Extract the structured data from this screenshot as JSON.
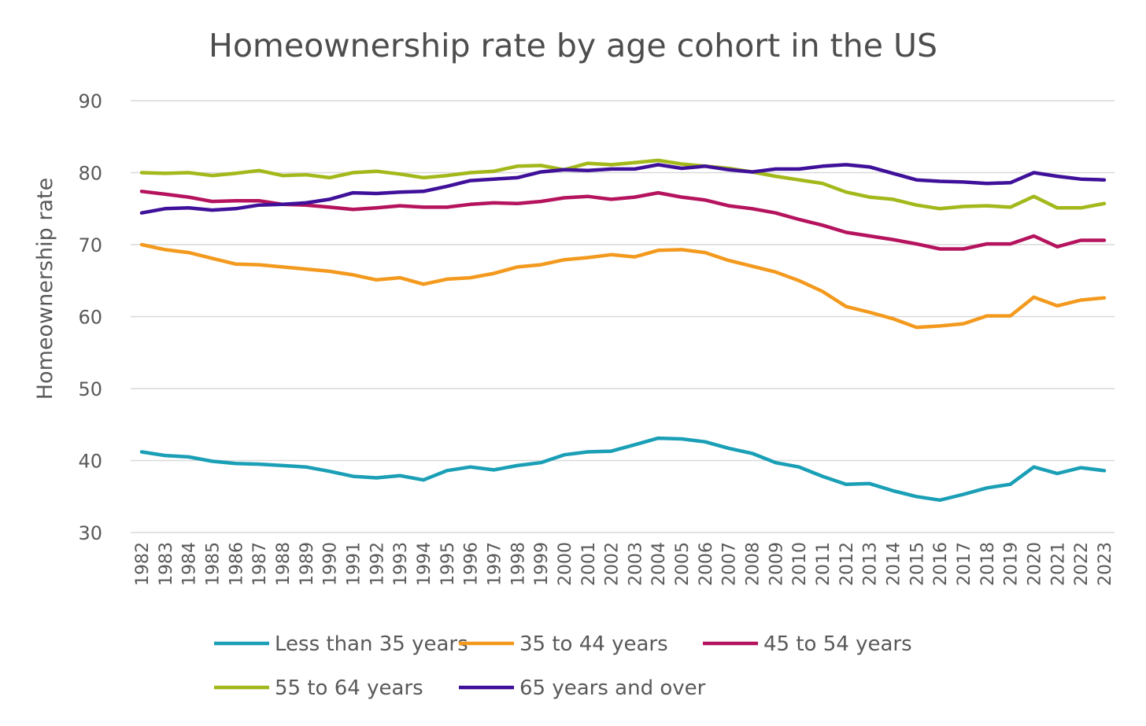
{
  "chart_data": {
    "type": "line",
    "title": "Homeownership rate by age cohort in the US",
    "xlabel": "",
    "ylabel": "Homeownership rate",
    "ylim": [
      30,
      90
    ],
    "yticks": [
      30,
      40,
      50,
      60,
      70,
      80,
      90
    ],
    "grid": true,
    "legend_position": "bottom",
    "categories": [
      "1982",
      "1983",
      "1984",
      "1985",
      "1986",
      "1987",
      "1988",
      "1989",
      "1990",
      "1991",
      "1992",
      "1993",
      "1994",
      "1995",
      "1996",
      "1997",
      "1998",
      "1999",
      "2000",
      "2001",
      "2002",
      "2003",
      "2004",
      "2005",
      "2006",
      "2007",
      "2008",
      "2009",
      "2010",
      "2011",
      "2012",
      "2013",
      "2014",
      "2015",
      "2016",
      "2017",
      "2018",
      "2019",
      "2020",
      "2021",
      "2022",
      "2023"
    ],
    "series": [
      {
        "name": "Less than 35 years",
        "color": "#1a9fb6",
        "values": [
          41.2,
          40.7,
          40.5,
          39.9,
          39.6,
          39.5,
          39.3,
          39.1,
          38.5,
          37.8,
          37.6,
          37.9,
          37.3,
          38.6,
          39.1,
          38.7,
          39.3,
          39.7,
          40.8,
          41.2,
          41.3,
          42.2,
          43.1,
          43.0,
          42.6,
          41.7,
          41.0,
          39.7,
          39.1,
          37.8,
          36.7,
          36.8,
          35.8,
          35.0,
          34.5,
          35.3,
          36.2,
          36.7,
          39.1,
          38.2,
          39.0,
          38.6
        ]
      },
      {
        "name": "35 to 44 years",
        "color": "#f39a1e",
        "values": [
          70.0,
          69.3,
          68.9,
          68.1,
          67.3,
          67.2,
          66.9,
          66.6,
          66.3,
          65.8,
          65.1,
          65.4,
          64.5,
          65.2,
          65.4,
          66.0,
          66.9,
          67.2,
          67.9,
          68.2,
          68.6,
          68.3,
          69.2,
          69.3,
          68.9,
          67.8,
          67.0,
          66.2,
          65.0,
          63.5,
          61.4,
          60.6,
          59.7,
          58.5,
          58.7,
          59.0,
          60.1,
          60.1,
          62.7,
          61.5,
          62.3,
          62.6
        ]
      },
      {
        "name": "45 to 54 years",
        "color": "#b5135e",
        "values": [
          77.4,
          77.0,
          76.6,
          76.0,
          76.1,
          76.1,
          75.6,
          75.5,
          75.2,
          74.9,
          75.1,
          75.4,
          75.2,
          75.2,
          75.6,
          75.8,
          75.7,
          76.0,
          76.5,
          76.7,
          76.3,
          76.6,
          77.2,
          76.6,
          76.2,
          75.4,
          75.0,
          74.4,
          73.5,
          72.7,
          71.7,
          71.2,
          70.7,
          70.1,
          69.4,
          69.4,
          70.1,
          70.1,
          71.2,
          69.7,
          70.6,
          70.6
        ]
      },
      {
        "name": "55 to 64 years",
        "color": "#a3b81a",
        "values": [
          80.0,
          79.9,
          80.0,
          79.6,
          79.9,
          80.3,
          79.6,
          79.7,
          79.3,
          80.0,
          80.2,
          79.8,
          79.3,
          79.6,
          80.0,
          80.2,
          80.9,
          81.0,
          80.4,
          81.3,
          81.1,
          81.4,
          81.7,
          81.2,
          80.9,
          80.6,
          80.1,
          79.5,
          79.0,
          78.5,
          77.3,
          76.6,
          76.3,
          75.5,
          75.0,
          75.3,
          75.4,
          75.2,
          76.7,
          75.1,
          75.1,
          75.7
        ]
      },
      {
        "name": "65 years and over",
        "color": "#3f1099",
        "values": [
          74.4,
          75.0,
          75.1,
          74.8,
          75.0,
          75.5,
          75.6,
          75.8,
          76.3,
          77.2,
          77.1,
          77.3,
          77.4,
          78.1,
          78.9,
          79.1,
          79.3,
          80.1,
          80.4,
          80.3,
          80.5,
          80.5,
          81.1,
          80.6,
          80.9,
          80.4,
          80.1,
          80.5,
          80.5,
          80.9,
          81.1,
          80.8,
          79.9,
          79.0,
          78.8,
          78.7,
          78.5,
          78.6,
          80.0,
          79.5,
          79.1,
          79.0
        ]
      }
    ]
  }
}
